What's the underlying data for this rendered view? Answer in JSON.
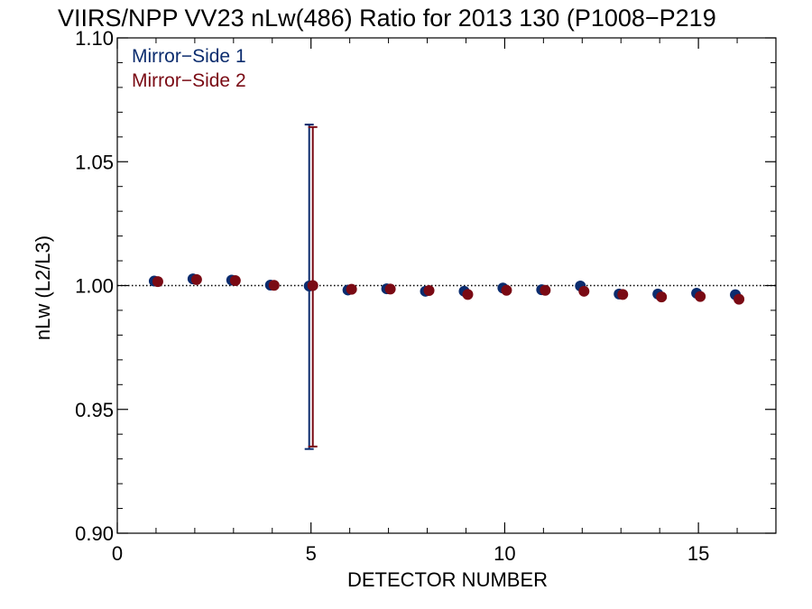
{
  "chart_data": {
    "type": "scatter",
    "title": "VIIRS/NPP VV23 nLw(486) Ratio for 2013 130 (P1008−P219",
    "xlabel": "DETECTOR NUMBER",
    "ylabel": "nLw (L2/L3)",
    "xlim": [
      0,
      17
    ],
    "ylim": [
      0.9,
      1.1
    ],
    "x_ticks": [
      0,
      5,
      10,
      15
    ],
    "x_tick_labels": [
      "0",
      "5",
      "10",
      "15"
    ],
    "y_ticks": [
      0.9,
      0.95,
      1.0,
      1.05,
      1.1
    ],
    "y_tick_labels": [
      "0.90",
      "0.95",
      "1.00",
      "1.05",
      "1.10"
    ],
    "reference_line": 1.0,
    "legend_position": "top-left",
    "series": [
      {
        "name": "Mirror−Side 1",
        "color": "#0b2c6e",
        "x": [
          1,
          2,
          3,
          4,
          5,
          6,
          7,
          8,
          9,
          10,
          11,
          12,
          13,
          14,
          15,
          16
        ],
        "values": [
          1.0018,
          1.0027,
          1.0022,
          1.0002,
          0.9998,
          0.9982,
          0.9987,
          0.9977,
          0.9977,
          0.999,
          0.9983,
          0.9998,
          0.9966,
          0.9966,
          0.9969,
          0.9963
        ],
        "error_bars": [
          {
            "x": 5,
            "low": 0.934,
            "high": 1.065
          }
        ]
      },
      {
        "name": "Mirror−Side 2",
        "color": "#7a0a14",
        "x": [
          1,
          2,
          3,
          4,
          5,
          6,
          7,
          8,
          9,
          10,
          11,
          12,
          13,
          14,
          15,
          16
        ],
        "values": [
          1.0016,
          1.0024,
          1.002,
          1.0001,
          1.0,
          0.9985,
          0.9986,
          0.998,
          0.9964,
          0.9981,
          0.9981,
          0.9977,
          0.9964,
          0.9954,
          0.9956,
          0.9945
        ],
        "error_bars": [
          {
            "x": 5,
            "low": 0.935,
            "high": 1.064
          }
        ]
      }
    ]
  }
}
